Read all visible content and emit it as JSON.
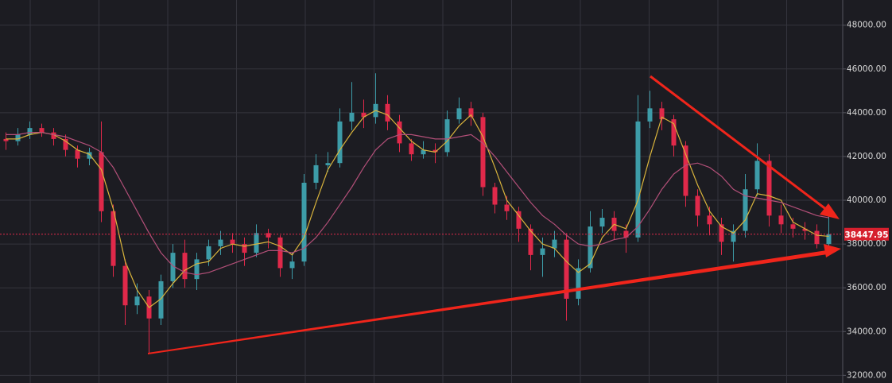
{
  "chart_data": {
    "type": "candlestick",
    "ylim": [
      31650,
      49150
    ],
    "yticks": [
      {
        "value": 48000,
        "label": "48000.00"
      },
      {
        "value": 46000,
        "label": "46000.00"
      },
      {
        "value": 44000,
        "label": "44000.00"
      },
      {
        "value": 42000,
        "label": "42000.00"
      },
      {
        "value": 40000,
        "label": "40000.00"
      },
      {
        "value": 38000,
        "label": "38000.00"
      },
      {
        "value": 36000,
        "label": "36000.00"
      },
      {
        "value": 34000,
        "label": "34000.00"
      },
      {
        "value": 32000,
        "label": "32000.00"
      }
    ],
    "grid": true,
    "up_color": "#3d9ca8",
    "down_color": "#e0294a",
    "open": [
      42800,
      42700,
      43000,
      43300,
      43100,
      42800,
      42300,
      41900,
      42200,
      39500,
      37000,
      35200,
      35600,
      34600,
      36300,
      37600,
      36400,
      37300,
      37900,
      38200,
      38000,
      37600,
      38500,
      38300,
      36900,
      37200,
      40800,
      41600,
      41700,
      43600,
      44000,
      43800,
      44400,
      43600,
      42600,
      42100,
      42300,
      42200,
      43700,
      44200,
      43800,
      40600,
      39800,
      39500,
      38700,
      37500,
      37800,
      38200,
      35500,
      36900,
      38800,
      39200,
      38600,
      38300,
      43600,
      44200,
      43700,
      42500,
      40200,
      39300,
      38900,
      38100,
      38600,
      40500,
      41800,
      39300,
      38900,
      38700,
      38600,
      38000
    ],
    "high": [
      43100,
      43300,
      43600,
      43500,
      43300,
      43000,
      42500,
      42400,
      43600,
      39800,
      37300,
      36200,
      35900,
      36600,
      38000,
      38200,
      37600,
      38200,
      38600,
      38500,
      38300,
      38900,
      38700,
      38400,
      37600,
      41200,
      42100,
      42200,
      44200,
      45400,
      44600,
      45800,
      44800,
      43900,
      42800,
      42700,
      42600,
      44100,
      44700,
      44500,
      44000,
      40800,
      40200,
      39700,
      38900,
      38300,
      38600,
      38500,
      37300,
      39500,
      39600,
      39500,
      38900,
      44800,
      45000,
      44500,
      43900,
      42700,
      40500,
      39700,
      39200,
      38900,
      41200,
      42600,
      42100,
      39800,
      39200,
      39000,
      38900,
      39800
    ],
    "low": [
      42300,
      42500,
      42800,
      42900,
      42500,
      42000,
      41500,
      41600,
      39000,
      36500,
      34300,
      34800,
      33000,
      34300,
      36000,
      36000,
      35900,
      37000,
      37500,
      37600,
      37000,
      37400,
      37800,
      36500,
      36400,
      37000,
      40500,
      41300,
      41500,
      43200,
      43300,
      43500,
      43200,
      42200,
      41800,
      41900,
      41700,
      42000,
      43500,
      43400,
      40200,
      39400,
      39100,
      38100,
      36800,
      36500,
      37400,
      34500,
      35200,
      36700,
      38500,
      38200,
      37600,
      38100,
      43300,
      43200,
      42000,
      39700,
      38800,
      38400,
      37500,
      37200,
      38300,
      40200,
      38800,
      38500,
      38300,
      38200,
      37800,
      37900
    ],
    "close": [
      42700,
      43000,
      43300,
      43100,
      42800,
      42300,
      41900,
      42200,
      39500,
      37000,
      35200,
      35600,
      34600,
      36300,
      37600,
      36400,
      37300,
      37900,
      38200,
      38000,
      37600,
      38500,
      38300,
      36900,
      37200,
      40800,
      41600,
      41700,
      43600,
      44000,
      43800,
      44400,
      43600,
      42600,
      42100,
      42300,
      42200,
      43700,
      44200,
      43800,
      40600,
      39800,
      39500,
      38700,
      37500,
      37800,
      38200,
      35500,
      36900,
      38800,
      39200,
      38600,
      38300,
      43600,
      44200,
      43700,
      42500,
      40200,
      39300,
      38900,
      38100,
      38600,
      40500,
      41800,
      39300,
      38900,
      38700,
      38600,
      38000,
      38447.95
    ],
    "lines": [
      {
        "color": "#d9b43c",
        "values": [
          42800,
          42800,
          43000,
          43100,
          43000,
          42700,
          42300,
          42100,
          41400,
          39600,
          37200,
          35900,
          35100,
          35500,
          36200,
          36800,
          37100,
          37200,
          37800,
          38000,
          37900,
          38000,
          38100,
          37900,
          37500,
          38300,
          39900,
          41400,
          42300,
          43100,
          43800,
          44100,
          43900,
          43300,
          42700,
          42300,
          42200,
          42700,
          43400,
          43900,
          42900,
          41500,
          40000,
          39300,
          38600,
          38000,
          37800,
          37200,
          36700,
          37100,
          38300,
          38900,
          38700,
          40000,
          42000,
          43800,
          43500,
          42100,
          40700,
          39500,
          38800,
          38500,
          39100,
          40300,
          40200,
          40000,
          39000,
          38700,
          38400,
          38350
        ]
      },
      {
        "color": "#b24f78",
        "values": [
          43000,
          43000,
          43100,
          43100,
          43000,
          42900,
          42700,
          42500,
          42200,
          41500,
          40500,
          39500,
          38500,
          37600,
          37000,
          36700,
          36600,
          36700,
          36900,
          37100,
          37300,
          37500,
          37700,
          37700,
          37600,
          37800,
          38300,
          39000,
          39800,
          40600,
          41500,
          42300,
          42800,
          43000,
          43000,
          42900,
          42800,
          42800,
          42900,
          43000,
          42600,
          42000,
          41300,
          40600,
          39900,
          39300,
          38900,
          38400,
          38000,
          37900,
          38000,
          38200,
          38300,
          38800,
          39600,
          40500,
          41200,
          41600,
          41700,
          41500,
          41100,
          40500,
          40200,
          40100,
          40000,
          39900,
          39700,
          39500,
          39300,
          39200
        ]
      }
    ]
  }
}
